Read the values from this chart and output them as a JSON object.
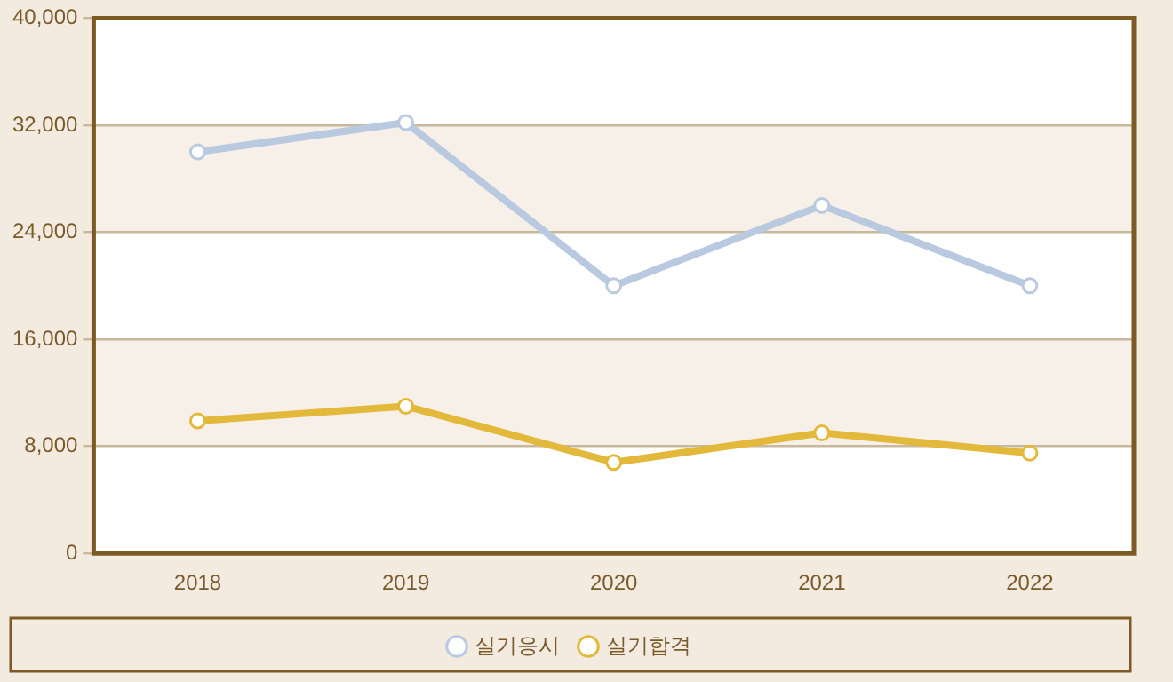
{
  "chart_data": {
    "type": "line",
    "categories": [
      "2018",
      "2019",
      "2020",
      "2021",
      "2022"
    ],
    "series": [
      {
        "name": "실기응시",
        "color": "#b9c9df",
        "values": [
          30000,
          32200,
          20000,
          26000,
          20000
        ]
      },
      {
        "name": "실기합격",
        "color": "#e2b93b",
        "values": [
          9900,
          11000,
          6800,
          9000,
          7500
        ]
      }
    ],
    "ylim": [
      0,
      40000
    ],
    "yticks": [
      0,
      {
        "value": 8000,
        "label": "8,000"
      },
      {
        "value": 16000,
        "label": "16,000"
      },
      {
        "value": 24000,
        "label": "24,000"
      },
      {
        "value": 32000,
        "label": "32,000"
      },
      {
        "value": 40000,
        "label": "40,000"
      }
    ],
    "grid": "y",
    "legend": "bottom",
    "marker": "circle",
    "line_style": "solid"
  }
}
